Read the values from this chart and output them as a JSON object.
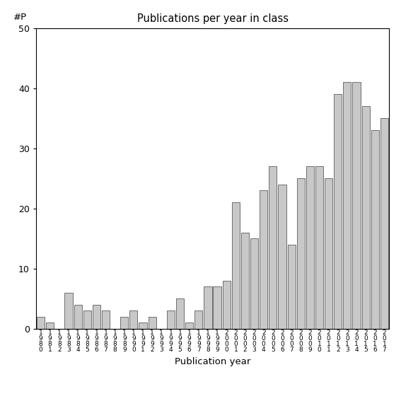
{
  "title": "Publications per year in class",
  "xlabel": "Publication year",
  "ylabel": "#P",
  "ylim": [
    0,
    50
  ],
  "yticks": [
    0,
    10,
    20,
    30,
    40,
    50
  ],
  "bar_color": "#c8c8c8",
  "bar_edgecolor": "#404040",
  "years": [
    1980,
    1981,
    1982,
    1983,
    1984,
    1985,
    1986,
    1987,
    1988,
    1989,
    1990,
    1991,
    1992,
    1993,
    1994,
    1995,
    1996,
    1997,
    1998,
    1999,
    2000,
    2001,
    2002,
    2003,
    2004,
    2005,
    2006,
    2007,
    2008,
    2009,
    2010,
    2011,
    2012,
    2013,
    2014,
    2015,
    2016,
    2017
  ],
  "values": [
    2,
    1,
    0,
    6,
    4,
    3,
    4,
    3,
    0,
    2,
    3,
    1,
    2,
    0,
    3,
    5,
    1,
    3,
    7,
    7,
    8,
    21,
    16,
    15,
    23,
    27,
    24,
    14,
    25,
    27,
    27,
    25,
    39,
    41,
    41,
    37,
    33,
    35
  ]
}
